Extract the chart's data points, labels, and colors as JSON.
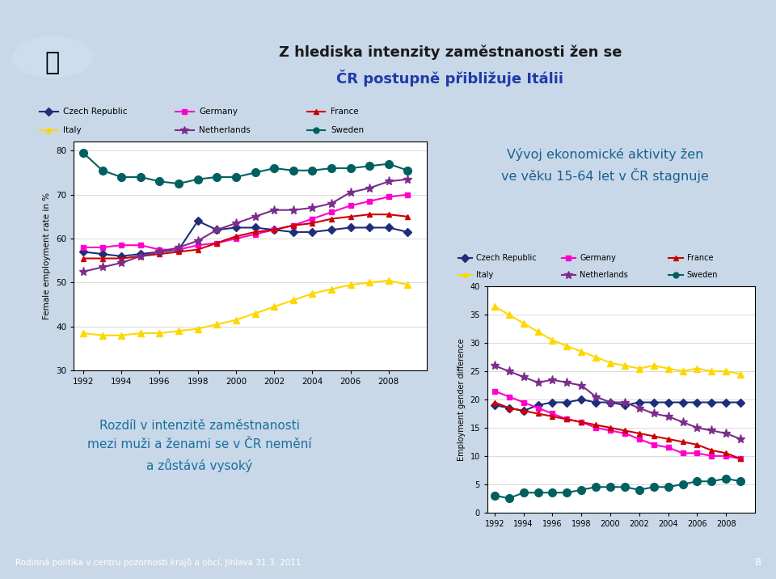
{
  "title_line1": "Z hlediska intenzity zaměstnanosti žen se",
  "title_line2": "ČR postupně přibližuje Itálii",
  "footer": "Rodinná politika v centru pozornosti krajů a obcí, Jihlava 31.3. 2011",
  "page_number": "8",
  "years": [
    1992,
    1993,
    1994,
    1995,
    1996,
    1997,
    1998,
    1999,
    2000,
    2001,
    2002,
    2003,
    2004,
    2005,
    2006,
    2007,
    2008,
    2009
  ],
  "female_employment": {
    "Czech Republic": [
      57.0,
      56.5,
      56.0,
      56.5,
      57.0,
      57.5,
      64.0,
      62.0,
      62.5,
      62.5,
      62.0,
      61.5,
      61.5,
      62.0,
      62.5,
      62.5,
      62.5,
      61.5
    ],
    "Germany": [
      58.0,
      58.0,
      58.5,
      58.5,
      57.5,
      57.5,
      58.5,
      59.0,
      60.0,
      61.0,
      62.0,
      63.0,
      64.5,
      66.0,
      67.5,
      68.5,
      69.5,
      70.0
    ],
    "France": [
      55.5,
      55.5,
      55.5,
      56.0,
      56.5,
      57.0,
      57.5,
      59.0,
      60.5,
      61.5,
      62.0,
      63.0,
      63.5,
      64.5,
      65.0,
      65.5,
      65.5,
      65.0
    ],
    "Italy": [
      38.5,
      38.0,
      38.0,
      38.5,
      38.5,
      39.0,
      39.5,
      40.5,
      41.5,
      43.0,
      44.5,
      46.0,
      47.5,
      48.5,
      49.5,
      50.0,
      50.5,
      49.5
    ],
    "Netherlands": [
      52.5,
      53.5,
      54.5,
      56.0,
      57.0,
      58.0,
      59.5,
      62.0,
      63.5,
      65.0,
      66.5,
      66.5,
      67.0,
      68.0,
      70.5,
      71.5,
      73.0,
      73.5
    ],
    "Sweden": [
      79.5,
      75.5,
      74.0,
      74.0,
      73.0,
      72.5,
      73.5,
      74.0,
      74.0,
      75.0,
      76.0,
      75.5,
      75.5,
      76.0,
      76.0,
      76.5,
      77.0,
      75.5
    ]
  },
  "gender_difference": {
    "Czech Republic": [
      19.0,
      18.5,
      18.0,
      19.0,
      19.5,
      19.5,
      20.0,
      19.5,
      19.5,
      19.0,
      19.5,
      19.5,
      19.5,
      19.5,
      19.5,
      19.5,
      19.5,
      19.5
    ],
    "Germany": [
      21.5,
      20.5,
      19.5,
      18.5,
      17.5,
      16.5,
      16.0,
      15.0,
      14.5,
      14.0,
      13.0,
      12.0,
      11.5,
      10.5,
      10.5,
      10.0,
      10.0,
      9.5
    ],
    "France": [
      19.5,
      18.5,
      18.0,
      17.5,
      17.0,
      16.5,
      16.0,
      15.5,
      15.0,
      14.5,
      14.0,
      13.5,
      13.0,
      12.5,
      12.0,
      11.0,
      10.5,
      9.5
    ],
    "Italy": [
      36.5,
      35.0,
      33.5,
      32.0,
      30.5,
      29.5,
      28.5,
      27.5,
      26.5,
      26.0,
      25.5,
      26.0,
      25.5,
      25.0,
      25.5,
      25.0,
      25.0,
      24.5
    ],
    "Netherlands": [
      26.0,
      25.0,
      24.0,
      23.0,
      23.5,
      23.0,
      22.5,
      20.5,
      19.5,
      19.5,
      18.5,
      17.5,
      17.0,
      16.0,
      15.0,
      14.5,
      14.0,
      13.0
    ],
    "Sweden": [
      3.0,
      2.5,
      3.5,
      3.5,
      3.5,
      3.5,
      4.0,
      4.5,
      4.5,
      4.5,
      4.0,
      4.5,
      4.5,
      5.0,
      5.5,
      5.5,
      6.0,
      5.5
    ]
  },
  "colors": {
    "Czech Republic": "#1F2E7A",
    "Germany": "#FF00CC",
    "France": "#CC0000",
    "Italy": "#FFD700",
    "Netherlands": "#7B2D8B",
    "Sweden": "#006060"
  },
  "markers": {
    "Czech Republic": "D",
    "Germany": "s",
    "France": "^",
    "Italy": "^",
    "Netherlands": "*",
    "Sweden": "o"
  },
  "marker_sizes": {
    "Czech Republic": 5,
    "Germany": 5,
    "France": 5,
    "Italy": 6,
    "Netherlands": 8,
    "Sweden": 7
  },
  "annotation_text": "Vývoj ekonomické aktivity žen\nve věku 15-64 let v ČR stagnuje",
  "left_text_line1": "Rozdíl v intenzitě zaměstnanosti",
  "left_text_line2": "mezi muži a ženami se v ČR nemění",
  "left_text_line3": "a zůstává vysoký",
  "header_top_bg": "#606060",
  "header_main_bg": "#B8CFE8",
  "header_stripe_bg": "#D4A017",
  "slide_bg": "#C8D8E8",
  "chart_bg": "#FFFAE0",
  "footer_bg": "#808080",
  "title1_color": "#1A1A1A",
  "title2_color": "#1F3AAA"
}
